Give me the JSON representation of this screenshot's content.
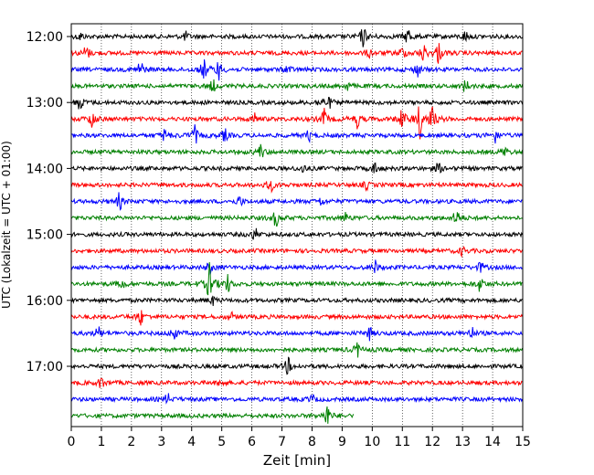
{
  "chart_data": {
    "type": "line",
    "title": "",
    "xlabel": "Zeit  [min]",
    "ylabel": "UTC (Lokalzeit = UTC + 01:00)",
    "xlim": [
      0,
      15
    ],
    "x_ticks": [
      "0",
      "1",
      "2",
      "3",
      "4",
      "5",
      "6",
      "7",
      "8",
      "9",
      "10",
      "11",
      "12",
      "13",
      "14",
      "15"
    ],
    "y_ticks": [
      "12:00",
      "13:00",
      "14:00",
      "15:00",
      "16:00",
      "17:00"
    ],
    "grid": "vertical dotted lines at each minute",
    "colors": [
      "#000000",
      "#ff0000",
      "#0000ff",
      "#008000"
    ],
    "trace_interval_minutes": 15,
    "series": [
      {
        "start": "12:00",
        "color": "#000000",
        "events": [
          [
            0.3,
            0.4
          ],
          [
            3.8,
            0.4
          ],
          [
            9.7,
            1.0
          ],
          [
            11.2,
            0.9
          ],
          [
            13.1,
            0.5
          ]
        ]
      },
      {
        "start": "12:15",
        "color": "#ff0000",
        "events": [
          [
            0.5,
            0.8
          ],
          [
            9.9,
            0.4
          ],
          [
            11.0,
            0.6
          ],
          [
            11.7,
            0.8
          ],
          [
            12.2,
            1.0
          ]
        ]
      },
      {
        "start": "12:30",
        "color": "#0000ff",
        "events": [
          [
            2.3,
            0.9
          ],
          [
            4.4,
            1.0
          ],
          [
            4.9,
            0.9
          ],
          [
            7.2,
            0.5
          ],
          [
            11.5,
            0.7
          ]
        ]
      },
      {
        "start": "12:45",
        "color": "#008000",
        "events": [
          [
            4.7,
            0.6
          ],
          [
            9.2,
            0.4
          ],
          [
            13.1,
            0.6
          ]
        ]
      },
      {
        "start": "13:00",
        "color": "#000000",
        "events": [
          [
            0.3,
            0.8
          ],
          [
            8.3,
            0.6
          ],
          [
            8.6,
            0.4
          ]
        ]
      },
      {
        "start": "13:15",
        "color": "#ff0000",
        "events": [
          [
            0.7,
            0.9
          ],
          [
            6.1,
            0.5
          ],
          [
            8.4,
            0.9
          ],
          [
            9.5,
            0.8
          ],
          [
            11.0,
            1.0
          ],
          [
            11.6,
            1.8
          ],
          [
            12.0,
            1.2
          ]
        ]
      },
      {
        "start": "13:30",
        "color": "#0000ff",
        "events": [
          [
            3.1,
            0.6
          ],
          [
            4.1,
            0.9
          ],
          [
            5.1,
            0.6
          ],
          [
            7.9,
            0.5
          ],
          [
            14.1,
            0.7
          ]
        ]
      },
      {
        "start": "13:45",
        "color": "#008000",
        "events": [
          [
            6.3,
            0.7
          ],
          [
            14.4,
            0.5
          ]
        ]
      },
      {
        "start": "14:00",
        "color": "#000000",
        "events": [
          [
            7.7,
            0.4
          ],
          [
            10.1,
            0.6
          ],
          [
            12.2,
            0.5
          ]
        ]
      },
      {
        "start": "14:15",
        "color": "#ff0000",
        "events": [
          [
            6.6,
            0.8
          ],
          [
            9.8,
            0.4
          ]
        ]
      },
      {
        "start": "14:30",
        "color": "#0000ff",
        "events": [
          [
            1.6,
            0.8
          ],
          [
            5.6,
            0.5
          ],
          [
            8.3,
            0.4
          ]
        ]
      },
      {
        "start": "14:45",
        "color": "#008000",
        "events": [
          [
            6.8,
            0.8
          ],
          [
            9.1,
            0.5
          ],
          [
            12.8,
            0.9
          ]
        ]
      },
      {
        "start": "15:00",
        "color": "#000000",
        "events": [
          [
            6.1,
            0.6
          ]
        ]
      },
      {
        "start": "15:15",
        "color": "#ff0000",
        "events": [
          [
            13.0,
            0.4
          ]
        ]
      },
      {
        "start": "15:30",
        "color": "#0000ff",
        "events": [
          [
            4.6,
            0.6
          ],
          [
            10.1,
            0.6
          ],
          [
            13.6,
            0.5
          ]
        ]
      },
      {
        "start": "15:45",
        "color": "#008000",
        "events": [
          [
            1.7,
            0.5
          ],
          [
            4.6,
            2.0
          ],
          [
            5.2,
            0.8
          ],
          [
            13.6,
            0.8
          ]
        ]
      },
      {
        "start": "16:00",
        "color": "#000000",
        "events": [
          [
            4.7,
            0.4
          ]
        ]
      },
      {
        "start": "16:15",
        "color": "#ff0000",
        "events": [
          [
            2.3,
            0.8
          ],
          [
            5.3,
            0.4
          ]
        ]
      },
      {
        "start": "16:30",
        "color": "#0000ff",
        "events": [
          [
            0.9,
            0.6
          ],
          [
            3.4,
            0.7
          ],
          [
            9.9,
            0.6
          ],
          [
            13.3,
            0.6
          ]
        ]
      },
      {
        "start": "16:45",
        "color": "#008000",
        "events": [
          [
            9.5,
            0.7
          ]
        ]
      },
      {
        "start": "17:00",
        "color": "#000000",
        "events": [
          [
            7.2,
            0.8
          ]
        ]
      },
      {
        "start": "17:15",
        "color": "#ff0000",
        "events": [
          [
            1.0,
            0.6
          ],
          [
            5.0,
            0.4
          ]
        ]
      },
      {
        "start": "17:30",
        "color": "#0000ff",
        "events": [
          [
            3.2,
            0.5
          ],
          [
            8.0,
            0.4
          ]
        ]
      },
      {
        "start": "17:45",
        "color": "#008000",
        "events": [
          [
            8.5,
            1.1
          ]
        ],
        "end_minute": 9.4
      }
    ]
  }
}
